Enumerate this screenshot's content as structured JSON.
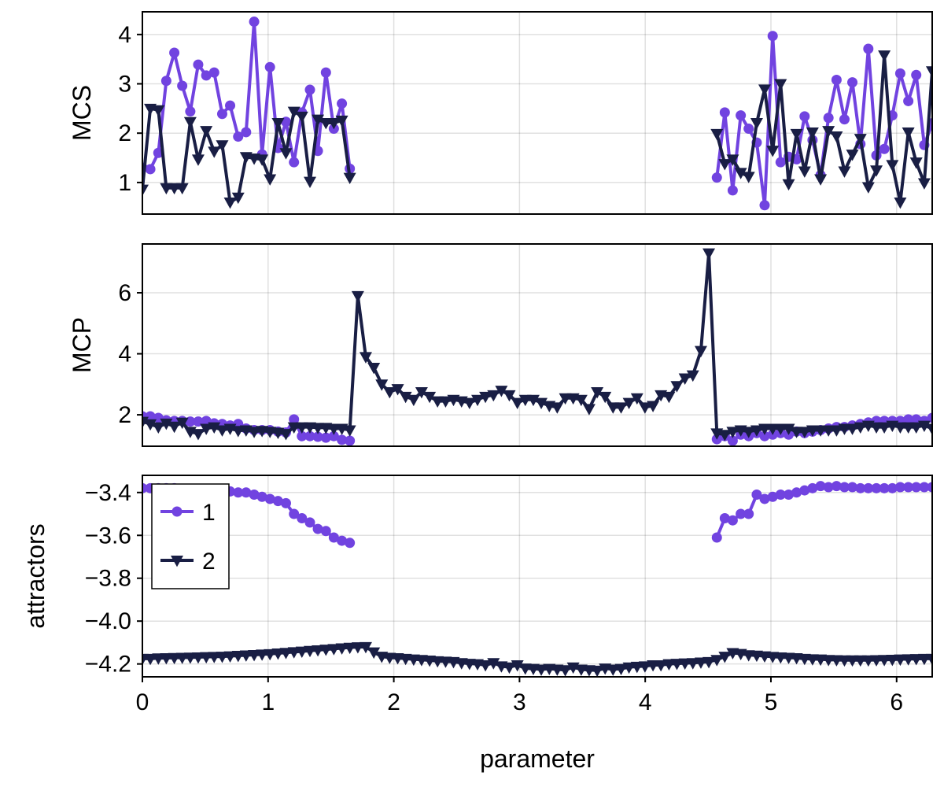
{
  "chart_data": [
    {
      "type": "line",
      "ylabel": "MCS",
      "xlim": [
        0,
        6.283
      ],
      "ylim": [
        0.36,
        4.46
      ],
      "yticks": [
        "1",
        "2",
        "3",
        "4"
      ],
      "ytick_values": [
        1,
        2,
        3,
        4
      ],
      "grid": true,
      "x": [
        0,
        0.063,
        0.127,
        0.19,
        0.254,
        0.317,
        0.381,
        0.444,
        0.508,
        0.571,
        0.635,
        0.698,
        0.762,
        0.825,
        0.889,
        0.952,
        1.015,
        1.079,
        1.142,
        1.206,
        1.269,
        1.333,
        1.396,
        1.46,
        1.523,
        1.587,
        1.65,
        1.714,
        1.777,
        1.841,
        1.904,
        1.967,
        2.031,
        2.094,
        2.158,
        2.221,
        2.285,
        2.348,
        2.412,
        2.475,
        2.539,
        2.602,
        2.666,
        2.729,
        2.793,
        2.856,
        2.919,
        2.983,
        3.046,
        3.11,
        3.173,
        3.237,
        3.3,
        3.364,
        3.427,
        3.491,
        3.554,
        3.618,
        3.681,
        3.744,
        3.808,
        3.871,
        3.935,
        3.998,
        4.062,
        4.125,
        4.189,
        4.252,
        4.316,
        4.379,
        4.443,
        4.506,
        4.57,
        4.633,
        4.696,
        4.76,
        4.823,
        4.887,
        4.95,
        5.014,
        5.077,
        5.141,
        5.204,
        5.268,
        5.331,
        5.395,
        5.458,
        5.522,
        5.585,
        5.648,
        5.712,
        5.775,
        5.839,
        5.902,
        5.966,
        6.029,
        6.093,
        6.156,
        6.22,
        6.283
      ],
      "series": [
        {
          "name": "1",
          "color": "#7143E0",
          "marker": "circle",
          "values": [
            1.3,
            1.27,
            1.6,
            3.06,
            3.63,
            2.96,
            2.44,
            3.39,
            3.17,
            3.23,
            2.39,
            2.56,
            1.93,
            2.02,
            4.26,
            1.57,
            3.34,
            1.7,
            2.23,
            1.41,
            2.42,
            2.88,
            1.64,
            3.23,
            2.09,
            2.6,
            1.28,
            null,
            null,
            null,
            null,
            null,
            null,
            null,
            null,
            null,
            null,
            null,
            null,
            null,
            null,
            null,
            null,
            null,
            null,
            null,
            null,
            null,
            null,
            null,
            null,
            null,
            null,
            null,
            null,
            null,
            null,
            null,
            null,
            null,
            null,
            null,
            null,
            null,
            null,
            null,
            null,
            null,
            null,
            null,
            null,
            null,
            1.1,
            2.42,
            0.84,
            2.36,
            2.09,
            1.81,
            0.54,
            3.97,
            1.41,
            1.52,
            1.47,
            2.34,
            1.86,
            1.15,
            2.31,
            3.08,
            2.28,
            3.03,
            1.78,
            3.71,
            1.55,
            1.68,
            2.36,
            3.21,
            2.65,
            3.18,
            1.76,
            2.2
          ]
        },
        {
          "name": "2",
          "color": "#191E44",
          "marker": "triangle-down",
          "values": [
            0.86,
            2.5,
            2.47,
            0.89,
            0.89,
            0.89,
            2.23,
            1.47,
            2.05,
            1.63,
            1.76,
            0.6,
            0.7,
            1.52,
            1.49,
            1.47,
            1.07,
            2.21,
            1.6,
            2.44,
            2.34,
            1.02,
            2.28,
            2.21,
            2.21,
            2.26,
            1.1,
            null,
            null,
            null,
            null,
            null,
            null,
            null,
            null,
            null,
            null,
            null,
            null,
            null,
            null,
            null,
            null,
            null,
            null,
            null,
            null,
            null,
            null,
            null,
            null,
            null,
            null,
            null,
            null,
            null,
            null,
            null,
            null,
            null,
            null,
            null,
            null,
            null,
            null,
            null,
            null,
            null,
            null,
            null,
            null,
            null,
            1.99,
            1.38,
            1.47,
            1.2,
            1.12,
            2.21,
            2.89,
            1.65,
            3.0,
            0.97,
            1.99,
            1.23,
            2.02,
            1.07,
            2.05,
            1.94,
            1.23,
            1.57,
            1.89,
            0.91,
            1.25,
            3.58,
            1.36,
            0.6,
            2.02,
            1.41,
            0.99,
            3.26
          ]
        }
      ]
    },
    {
      "type": "line",
      "ylabel": "MCP",
      "xlim": [
        0,
        6.283
      ],
      "ylim": [
        0.97,
        7.6
      ],
      "yticks": [
        "2",
        "4",
        "6"
      ],
      "ytick_values": [
        2,
        4,
        6
      ],
      "grid": true,
      "series": [
        {
          "name": "1",
          "color": "#7143E0",
          "marker": "circle",
          "values": [
            1.95,
            1.95,
            1.9,
            1.82,
            1.8,
            1.8,
            1.78,
            1.78,
            1.8,
            1.72,
            1.7,
            1.65,
            1.7,
            1.55,
            1.5,
            1.5,
            1.5,
            1.45,
            1.42,
            1.85,
            1.3,
            1.3,
            1.28,
            1.25,
            1.3,
            1.18,
            1.15,
            null,
            null,
            null,
            null,
            null,
            null,
            null,
            null,
            null,
            null,
            null,
            null,
            null,
            null,
            null,
            null,
            null,
            null,
            null,
            null,
            null,
            null,
            null,
            null,
            null,
            null,
            null,
            null,
            null,
            null,
            null,
            null,
            null,
            null,
            null,
            null,
            null,
            null,
            null,
            null,
            null,
            null,
            null,
            null,
            null,
            1.2,
            1.3,
            1.15,
            1.35,
            1.3,
            1.4,
            1.3,
            1.35,
            1.4,
            1.35,
            1.45,
            1.4,
            1.45,
            1.5,
            1.55,
            1.6,
            1.6,
            1.65,
            1.7,
            1.75,
            1.8,
            1.8,
            1.8,
            1.8,
            1.85,
            1.85,
            1.8,
            1.9
          ]
        },
        {
          "name": "2",
          "color": "#191E44",
          "marker": "triangle-down",
          "values": [
            1.78,
            1.7,
            1.6,
            1.72,
            1.62,
            1.75,
            1.45,
            1.38,
            1.55,
            1.6,
            1.5,
            1.55,
            1.48,
            1.5,
            1.45,
            1.48,
            1.45,
            1.42,
            1.38,
            1.6,
            1.6,
            1.6,
            1.58,
            1.58,
            1.55,
            1.55,
            1.5,
            5.9,
            3.9,
            3.55,
            3.0,
            2.75,
            2.85,
            2.6,
            2.5,
            2.75,
            2.6,
            2.45,
            2.45,
            2.5,
            2.45,
            2.4,
            2.5,
            2.6,
            2.65,
            2.8,
            2.65,
            2.4,
            2.5,
            2.5,
            2.4,
            2.3,
            2.25,
            2.55,
            2.55,
            2.5,
            2.2,
            2.75,
            2.6,
            2.25,
            2.25,
            2.4,
            2.55,
            2.25,
            2.3,
            2.65,
            2.6,
            2.95,
            3.2,
            3.3,
            4.1,
            7.3,
            1.4,
            1.35,
            1.45,
            1.5,
            1.45,
            1.5,
            1.55,
            1.55,
            1.55,
            1.55,
            1.45,
            1.45,
            1.5,
            1.5,
            1.5,
            1.5,
            1.55,
            1.55,
            1.6,
            1.65,
            1.6,
            1.6,
            1.65,
            1.6,
            1.6,
            1.6,
            1.65,
            1.55
          ]
        }
      ]
    },
    {
      "type": "line",
      "ylabel": "attractors",
      "xlabel": "parameter",
      "xlim": [
        0,
        6.283
      ],
      "ylim": [
        -4.26,
        -3.32
      ],
      "xticks": [
        "0",
        "1",
        "2",
        "3",
        "4",
        "5",
        "6"
      ],
      "xtick_values": [
        0,
        1,
        2,
        3,
        4,
        5,
        6
      ],
      "yticks": [
        "−4.2",
        "−4.0",
        "−3.8",
        "−3.6",
        "−3.4"
      ],
      "ytick_values": [
        -4.2,
        -4.0,
        -3.8,
        -3.6,
        -3.4
      ],
      "grid": true,
      "legend": {
        "position": "top-left",
        "entries": [
          "1",
          "2"
        ]
      },
      "series": [
        {
          "name": "1",
          "color": "#7143E0",
          "marker": "circle",
          "values": [
            -3.38,
            -3.38,
            -3.38,
            -3.38,
            -3.38,
            -3.385,
            -3.385,
            -3.385,
            -3.39,
            -3.39,
            -3.39,
            -3.395,
            -3.4,
            -3.4,
            -3.41,
            -3.42,
            -3.43,
            -3.44,
            -3.45,
            -3.5,
            -3.52,
            -3.54,
            -3.57,
            -3.58,
            -3.61,
            -3.625,
            -3.635,
            null,
            null,
            null,
            null,
            null,
            null,
            null,
            null,
            null,
            null,
            null,
            null,
            null,
            null,
            null,
            null,
            null,
            null,
            null,
            null,
            null,
            null,
            null,
            null,
            null,
            null,
            null,
            null,
            null,
            null,
            null,
            null,
            null,
            null,
            null,
            null,
            null,
            null,
            null,
            null,
            null,
            null,
            null,
            null,
            null,
            -3.61,
            -3.52,
            -3.53,
            -3.5,
            -3.5,
            -3.41,
            -3.43,
            -3.42,
            -3.41,
            -3.41,
            -3.4,
            -3.39,
            -3.38,
            -3.37,
            -3.375,
            -3.37,
            -3.375,
            -3.375,
            -3.38,
            -3.38,
            -3.38,
            -3.38,
            -3.38,
            -3.375,
            -3.375,
            -3.375,
            -3.375,
            -3.375
          ]
        },
        {
          "name": "2",
          "color": "#191E44",
          "marker": "triangle-down",
          "values": [
            -4.175,
            -4.175,
            -4.173,
            -4.172,
            -4.171,
            -4.17,
            -4.169,
            -4.168,
            -4.167,
            -4.166,
            -4.165,
            -4.163,
            -4.161,
            -4.159,
            -4.157,
            -4.155,
            -4.153,
            -4.15,
            -4.147,
            -4.144,
            -4.141,
            -4.138,
            -4.135,
            -4.132,
            -4.129,
            -4.126,
            -4.123,
            -4.121,
            -4.12,
            -4.145,
            -4.165,
            -4.17,
            -4.172,
            -4.175,
            -4.178,
            -4.18,
            -4.183,
            -4.186,
            -4.188,
            -4.19,
            -4.195,
            -4.198,
            -4.2,
            -4.205,
            -4.195,
            -4.21,
            -4.215,
            -4.205,
            -4.22,
            -4.222,
            -4.225,
            -4.222,
            -4.225,
            -4.228,
            -4.215,
            -4.225,
            -4.228,
            -4.23,
            -4.22,
            -4.225,
            -4.222,
            -4.215,
            -4.212,
            -4.21,
            -4.205,
            -4.205,
            -4.2,
            -4.198,
            -4.196,
            -4.195,
            -4.192,
            -4.19,
            -4.18,
            -4.165,
            -4.148,
            -4.152,
            -4.158,
            -4.16,
            -4.163,
            -4.166,
            -4.168,
            -4.17,
            -4.172,
            -4.175,
            -4.177,
            -4.178,
            -4.18,
            -4.181,
            -4.182,
            -4.182,
            -4.182,
            -4.182,
            -4.181,
            -4.18,
            -4.179,
            -4.178,
            -4.177,
            -4.176,
            -4.175,
            -4.175
          ]
        }
      ]
    }
  ]
}
